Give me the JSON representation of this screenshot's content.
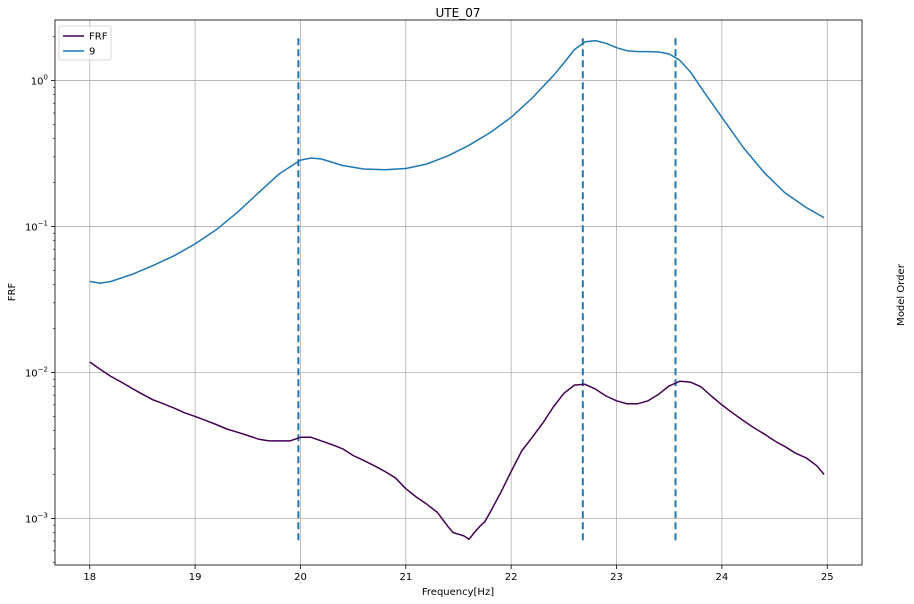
{
  "chart_data": {
    "type": "line",
    "title": "UTE_07",
    "xlabel": "Frequency[Hz]",
    "ylabel": "FRF",
    "ylabel_right": "Model Order",
    "xlim": [
      17.67,
      25.33
    ],
    "ylim": [
      0.00048,
      2.6
    ],
    "yscale": "log",
    "grid": true,
    "legend_position": "top-left",
    "x_ticks": [
      18,
      19,
      20,
      21,
      22,
      23,
      24,
      25
    ],
    "y_ticks": [
      {
        "value": 0.001,
        "base": "10",
        "exp": "−3"
      },
      {
        "value": 0.01,
        "base": "10",
        "exp": "−2"
      },
      {
        "value": 0.1,
        "base": "10",
        "exp": "−1"
      },
      {
        "value": 1,
        "base": "10",
        "exp": "0"
      }
    ],
    "series": [
      {
        "name": "FRF",
        "color": "#440154",
        "x": [
          18.0,
          18.1,
          18.2,
          18.3,
          18.4,
          18.5,
          18.6,
          18.7,
          18.8,
          18.9,
          19.0,
          19.1,
          19.2,
          19.3,
          19.4,
          19.5,
          19.6,
          19.7,
          19.8,
          19.9,
          20.0,
          20.1,
          20.2,
          20.3,
          20.4,
          20.5,
          20.6,
          20.7,
          20.8,
          20.9,
          21.0,
          21.1,
          21.2,
          21.3,
          21.4,
          21.45,
          21.5,
          21.55,
          21.6,
          21.65,
          21.7,
          21.75,
          21.8,
          21.9,
          22.0,
          22.1,
          22.2,
          22.3,
          22.4,
          22.5,
          22.6,
          22.7,
          22.8,
          22.9,
          23.0,
          23.1,
          23.2,
          23.3,
          23.4,
          23.5,
          23.6,
          23.7,
          23.8,
          23.9,
          24.0,
          24.1,
          24.2,
          24.3,
          24.4,
          24.5,
          24.6,
          24.7,
          24.8,
          24.9,
          24.97
        ],
        "y": [
          0.0118,
          0.0105,
          0.0094,
          0.0086,
          0.0078,
          0.0071,
          0.0065,
          0.0061,
          0.0057,
          0.0053,
          0.005,
          0.0047,
          0.0044,
          0.0041,
          0.0039,
          0.0037,
          0.0035,
          0.0034,
          0.0034,
          0.0034,
          0.0036,
          0.0036,
          0.0034,
          0.0032,
          0.003,
          0.0027,
          0.0025,
          0.0023,
          0.0021,
          0.0019,
          0.0016,
          0.0014,
          0.00125,
          0.0011,
          0.00088,
          0.0008,
          0.00078,
          0.00076,
          0.00072,
          0.0008,
          0.00088,
          0.00095,
          0.0011,
          0.0015,
          0.0021,
          0.0029,
          0.0036,
          0.0045,
          0.0058,
          0.0072,
          0.0082,
          0.0083,
          0.0077,
          0.0069,
          0.0064,
          0.0061,
          0.0061,
          0.0064,
          0.0071,
          0.0081,
          0.0087,
          0.0086,
          0.008,
          0.0069,
          0.006,
          0.0053,
          0.0047,
          0.0042,
          0.0038,
          0.0034,
          0.0031,
          0.0028,
          0.0026,
          0.0023,
          0.002
        ]
      },
      {
        "name": "9",
        "color": "#1f77b4",
        "x": [
          18.0,
          18.1,
          18.2,
          18.4,
          18.6,
          18.8,
          19.0,
          19.2,
          19.4,
          19.6,
          19.8,
          20.0,
          20.1,
          20.2,
          20.4,
          20.6,
          20.8,
          21.0,
          21.2,
          21.4,
          21.6,
          21.8,
          22.0,
          22.2,
          22.4,
          22.5,
          22.6,
          22.7,
          22.8,
          22.9,
          23.0,
          23.1,
          23.2,
          23.3,
          23.4,
          23.5,
          23.6,
          23.7,
          23.8,
          24.0,
          24.2,
          24.4,
          24.6,
          24.8,
          24.97
        ],
        "y": [
          0.042,
          0.041,
          0.042,
          0.047,
          0.054,
          0.063,
          0.076,
          0.095,
          0.125,
          0.17,
          0.23,
          0.285,
          0.295,
          0.29,
          0.262,
          0.248,
          0.245,
          0.25,
          0.268,
          0.305,
          0.36,
          0.44,
          0.56,
          0.76,
          1.08,
          1.32,
          1.63,
          1.84,
          1.88,
          1.8,
          1.68,
          1.6,
          1.58,
          1.58,
          1.57,
          1.52,
          1.38,
          1.15,
          0.9,
          0.56,
          0.35,
          0.235,
          0.17,
          0.135,
          0.115
        ]
      }
    ],
    "vlines": {
      "x": [
        19.98,
        22.68,
        23.56
      ],
      "y_range": [
        0.0007,
        1.95
      ],
      "color": "#1f77b4",
      "style": "dashed"
    }
  }
}
